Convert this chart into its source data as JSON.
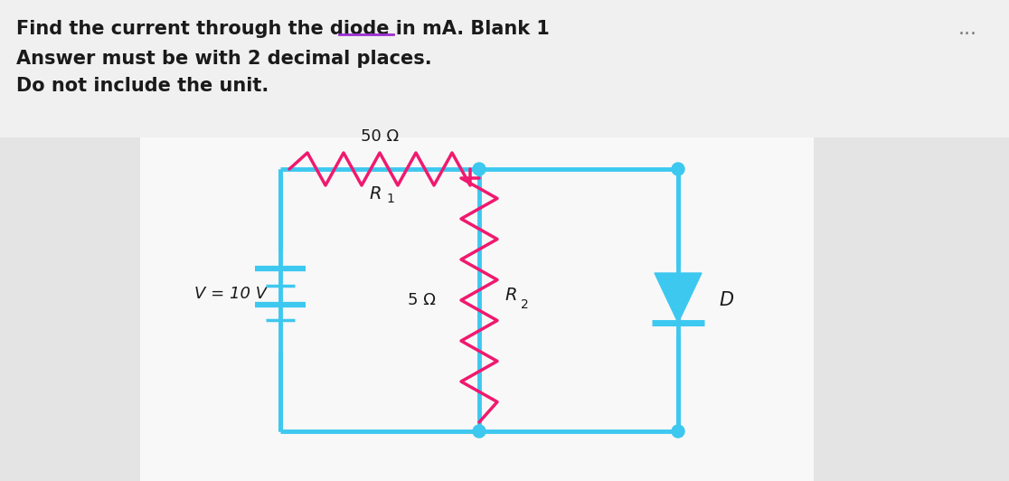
{
  "bg_color": "#f0f0f0",
  "white_bg": "#ffffff",
  "panel_left_color": "#e8e8e8",
  "panel_right_color": "#e8e8e8",
  "circuit_color": "#3dc8f0",
  "resistor_color": "#f0196e",
  "diode_color": "#3dc8f0",
  "text_color": "#1a1a1a",
  "underline_color": "#9b30d0",
  "dots_color": "#3dc8f0",
  "battery_color": "#3dc8f0",
  "battery_line_color": "#3dc8f0",
  "label_V": "V = 10 V",
  "label_R1_val": "50 Ω",
  "label_R1_name": "R",
  "label_R1_sub": "1",
  "label_R2_val": "5 Ω",
  "label_R2_name": "R",
  "label_R2_sub": "2",
  "label_D": "D",
  "dots_text": "...",
  "line1_prefix": "Find the current through the diode in mA. ",
  "line1_suffix": "Blank 1",
  "line2": "Answer must be with 2 decimal places.",
  "line3": "Do not include the unit."
}
